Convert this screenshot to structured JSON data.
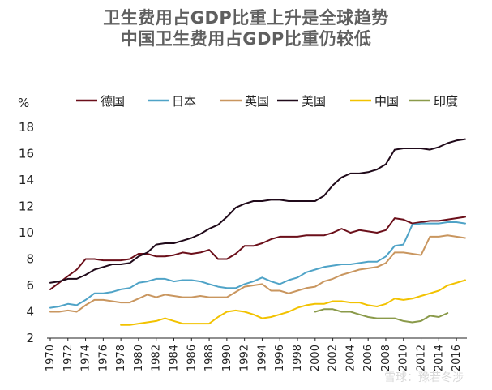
{
  "title_line1": "卫生费用占GDP比重上升是全球趋势",
  "title_line2": "中国卫生费用占GDP比重仍较低",
  "watermark": "雪球：豫若冬涉",
  "chart_data": {
    "type": "line",
    "ylabel": "%",
    "ylim": [
      2,
      18
    ],
    "yticks": [
      2,
      4,
      6,
      8,
      10,
      12,
      14,
      16,
      18
    ],
    "xlim": [
      1970,
      2017
    ],
    "xticks": [
      1970,
      1972,
      1974,
      1976,
      1978,
      1980,
      1982,
      1984,
      1986,
      1988,
      1990,
      1992,
      1994,
      1996,
      1998,
      2000,
      2002,
      2004,
      2006,
      2008,
      2010,
      2012,
      2014,
      2016
    ],
    "grid": false,
    "legend": "top",
    "series": [
      {
        "name": "德国",
        "color": "#6b0f1a",
        "x": [
          1970,
          1971,
          1972,
          1973,
          1974,
          1975,
          1976,
          1977,
          1978,
          1979,
          1980,
          1981,
          1982,
          1983,
          1984,
          1985,
          1986,
          1987,
          1988,
          1989,
          1990,
          1991,
          1992,
          1993,
          1994,
          1995,
          1996,
          1997,
          1998,
          1999,
          2000,
          2001,
          2002,
          2003,
          2004,
          2005,
          2006,
          2007,
          2008,
          2009,
          2010,
          2011,
          2012,
          2013,
          2014,
          2015,
          2016,
          2017
        ],
        "y": [
          5.7,
          6.2,
          6.7,
          7.2,
          8.0,
          8.0,
          7.9,
          7.9,
          7.9,
          8.0,
          8.4,
          8.4,
          8.2,
          8.2,
          8.3,
          8.5,
          8.4,
          8.5,
          8.7,
          8.0,
          8.0,
          8.4,
          9.0,
          9.0,
          9.2,
          9.5,
          9.7,
          9.7,
          9.7,
          9.8,
          9.8,
          9.8,
          10.0,
          10.3,
          10.0,
          10.2,
          10.1,
          10.0,
          10.2,
          11.1,
          11.0,
          10.7,
          10.8,
          10.9,
          10.9,
          11.0,
          11.1,
          11.2
        ]
      },
      {
        "name": "日本",
        "color": "#4fa3c7",
        "x": [
          1970,
          1971,
          1972,
          1973,
          1974,
          1975,
          1976,
          1977,
          1978,
          1979,
          1980,
          1981,
          1982,
          1983,
          1984,
          1985,
          1986,
          1987,
          1988,
          1989,
          1990,
          1991,
          1992,
          1993,
          1994,
          1995,
          1996,
          1997,
          1998,
          1999,
          2000,
          2001,
          2002,
          2003,
          2004,
          2005,
          2006,
          2007,
          2008,
          2009,
          2010,
          2011,
          2012,
          2013,
          2014,
          2015,
          2016,
          2017
        ],
        "y": [
          4.3,
          4.4,
          4.6,
          4.5,
          4.9,
          5.4,
          5.4,
          5.5,
          5.7,
          5.8,
          6.2,
          6.3,
          6.5,
          6.5,
          6.3,
          6.4,
          6.4,
          6.3,
          6.1,
          5.9,
          5.8,
          5.8,
          6.1,
          6.3,
          6.6,
          6.3,
          6.1,
          6.4,
          6.6,
          7.0,
          7.2,
          7.4,
          7.5,
          7.6,
          7.6,
          7.7,
          7.8,
          7.8,
          8.2,
          9.0,
          9.1,
          10.6,
          10.7,
          10.7,
          10.7,
          10.8,
          10.8,
          10.7
        ]
      },
      {
        "name": "英国",
        "color": "#c9965f",
        "x": [
          1970,
          1971,
          1972,
          1973,
          1974,
          1975,
          1976,
          1977,
          1978,
          1979,
          1980,
          1981,
          1982,
          1983,
          1984,
          1985,
          1986,
          1987,
          1988,
          1989,
          1990,
          1991,
          1992,
          1993,
          1994,
          1995,
          1996,
          1997,
          1998,
          1999,
          2000,
          2001,
          2002,
          2003,
          2004,
          2005,
          2006,
          2007,
          2008,
          2009,
          2010,
          2011,
          2012,
          2013,
          2014,
          2015,
          2016,
          2017
        ],
        "y": [
          4.0,
          4.0,
          4.1,
          4.0,
          4.5,
          4.9,
          4.9,
          4.8,
          4.7,
          4.7,
          5.0,
          5.3,
          5.1,
          5.3,
          5.2,
          5.1,
          5.1,
          5.2,
          5.1,
          5.1,
          5.1,
          5.5,
          5.9,
          6.0,
          6.1,
          5.6,
          5.6,
          5.4,
          5.6,
          5.8,
          5.9,
          6.3,
          6.5,
          6.8,
          7.0,
          7.2,
          7.3,
          7.4,
          7.7,
          8.5,
          8.5,
          8.4,
          8.3,
          9.7,
          9.7,
          9.8,
          9.7,
          9.6
        ]
      },
      {
        "name": "美国",
        "color": "#200a1a",
        "x": [
          1970,
          1971,
          1972,
          1973,
          1974,
          1975,
          1976,
          1977,
          1978,
          1979,
          1980,
          1981,
          1982,
          1983,
          1984,
          1985,
          1986,
          1987,
          1988,
          1989,
          1990,
          1991,
          1992,
          1993,
          1994,
          1995,
          1996,
          1997,
          1998,
          1999,
          2000,
          2001,
          2002,
          2003,
          2004,
          2005,
          2006,
          2007,
          2008,
          2009,
          2010,
          2011,
          2012,
          2013,
          2014,
          2015,
          2016,
          2017
        ],
        "y": [
          6.2,
          6.3,
          6.5,
          6.5,
          6.8,
          7.2,
          7.4,
          7.6,
          7.6,
          7.7,
          8.2,
          8.5,
          9.1,
          9.2,
          9.2,
          9.4,
          9.6,
          9.9,
          10.3,
          10.6,
          11.2,
          11.9,
          12.2,
          12.4,
          12.4,
          12.5,
          12.5,
          12.4,
          12.4,
          12.4,
          12.4,
          12.8,
          13.6,
          14.2,
          14.5,
          14.5,
          14.6,
          14.8,
          15.2,
          16.3,
          16.4,
          16.4,
          16.4,
          16.3,
          16.5,
          16.8,
          17.0,
          17.1
        ]
      },
      {
        "name": "中国",
        "color": "#f2c200",
        "x": [
          1978,
          1979,
          1980,
          1981,
          1982,
          1983,
          1984,
          1985,
          1986,
          1987,
          1988,
          1989,
          1990,
          1991,
          1992,
          1993,
          1994,
          1995,
          1996,
          1997,
          1998,
          1999,
          2000,
          2001,
          2002,
          2003,
          2004,
          2005,
          2006,
          2007,
          2008,
          2009,
          2010,
          2011,
          2012,
          2013,
          2014,
          2015,
          2016,
          2017
        ],
        "y": [
          3.0,
          3.0,
          3.1,
          3.2,
          3.3,
          3.5,
          3.3,
          3.1,
          3.1,
          3.1,
          3.1,
          3.6,
          4.0,
          4.1,
          4.0,
          3.8,
          3.5,
          3.6,
          3.8,
          4.0,
          4.3,
          4.5,
          4.6,
          4.6,
          4.8,
          4.8,
          4.7,
          4.7,
          4.5,
          4.4,
          4.6,
          5.0,
          4.9,
          5.0,
          5.2,
          5.4,
          5.6,
          6.0,
          6.2,
          6.4
        ]
      },
      {
        "name": "印度",
        "color": "#8a9a4a",
        "x": [
          2000,
          2001,
          2002,
          2003,
          2004,
          2005,
          2006,
          2007,
          2008,
          2009,
          2010,
          2011,
          2012,
          2013,
          2014,
          2015
        ],
        "y": [
          4.0,
          4.2,
          4.2,
          4.0,
          4.0,
          3.8,
          3.6,
          3.5,
          3.5,
          3.5,
          3.3,
          3.2,
          3.3,
          3.7,
          3.6,
          3.9
        ]
      }
    ]
  }
}
